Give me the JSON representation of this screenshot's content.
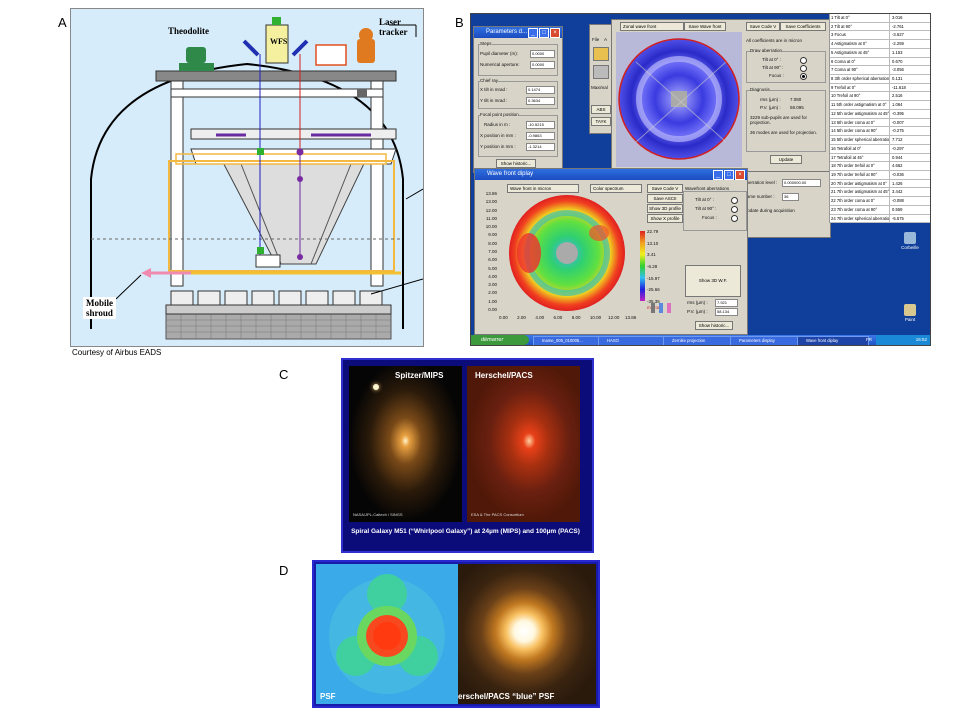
{
  "panel_labels": {
    "a": "A",
    "b": "B",
    "c": "C",
    "d": "D"
  },
  "panel_a": {
    "theodolite": "Theodolite",
    "laser_tracker": "Laser tracker",
    "wfs": "WFS",
    "mobile_shroud": "Mobile\nshroud",
    "courtesy": "Courtesy of Airbus EADS"
  },
  "panel_b": {
    "param_window_title": "Parameters d...",
    "param": {
      "steps_label": "Steps",
      "pupil_diameter_label": "Pupil diameter (m):",
      "pupil_diameter_value": "0.0000",
      "numerical_aperture_label": "Numerical aperture:",
      "numerical_aperture_value": "0.0000",
      "chief_ray_label": "Chief ray",
      "x_tilt_label": "X tilt in mrad :",
      "x_tilt_value": "0.1474",
      "y_tilt_label": "Y tilt in mrad :",
      "y_tilt_value": "0.3634",
      "focal_label": "Focal point position",
      "radius_label": "Radius in m :",
      "radius_value": "-10.5215",
      "xpos_label": "X position in mm :",
      "xpos_value": "-0.9863",
      "ypos_label": "Y position in mm :",
      "ypos_value": "-1.3214",
      "history_button": "Show historic..."
    },
    "side_menu": {
      "file": "File",
      "area": "A",
      "max": "Maximal",
      "abs": "ABS",
      "tilt": "TAYK"
    },
    "zonal": {
      "dropdown": "Zonal wave front",
      "save_wf": "Save Wave front",
      "save_code_v": "Save Code V",
      "save_coeffs": "Save Coefficients",
      "all_coeffs": "All coefficients are in micron",
      "draw_aberration": "Draw aberration",
      "tilt0": "Tilt at 0° :",
      "tilt90": "Tilt at 90° :",
      "focus": "Focus :",
      "diagnosis": "Diagnosis",
      "rms_label": "rms (µm) :",
      "rms_value": "7.080",
      "pv_label": "P.V. (µm) :",
      "pv_value": "58.095",
      "subpupils": "3229 sub-pupils are used for projection.",
      "modes": "36 modes are used for projection.",
      "update": "Update"
    },
    "wavefront_window": {
      "title": "Wave front diplay",
      "dropdown": "Wave front in micron",
      "color_dropdown": "Color spectrum",
      "save_code_v": "Save Code V",
      "save_ascii": "Save ASCII",
      "show_3d_profile": "Show 3D profile",
      "show_x_profile": "Show X profile",
      "wf_aberrations": "Wavefront aberrations",
      "tilt0": "Tilt at 0° :",
      "tilt90": "Tilt at 90° :",
      "focus": "Focus :",
      "show_3d_wf": "Show 3D W.F.",
      "rms_label": "rms (µm) :",
      "rms_value": "7.921",
      "pv_label": "P.V. (µm) :",
      "pv_value": "58.134",
      "history_button": "Show historic...",
      "colorbar_values": [
        "22.79",
        "13.10",
        "3.41",
        "-6.28",
        "-15.97",
        "-25.66",
        "-35.35"
      ],
      "colorbar_unit": "micron",
      "y_ticks": [
        "13.86",
        "13.00",
        "12.00",
        "11.00",
        "10.00",
        "9.00",
        "8.00",
        "7.00",
        "6.00",
        "5.00",
        "4.00",
        "3.00",
        "2.00",
        "1.00",
        "0.00"
      ],
      "x_ticks": [
        "0.00",
        "2.00",
        "4.00",
        "6.00",
        "8.00",
        "10.00",
        "12.00",
        "13.86"
      ]
    },
    "misc": {
      "cut_level_label": "aberration level :",
      "cut_level_value": "0.000000.00",
      "frame_label": "frame number :",
      "frame_value": "36",
      "update_acq": "Update during acquisition"
    },
    "zernike": [
      {
        "name": "1  Tilt at 0°",
        "value": "3.016"
      },
      {
        "name": "2  Tilt at 90°",
        "value": "-2.761"
      },
      {
        "name": "3  Focus",
        "value": "-3.627"
      },
      {
        "name": "4  Astigmatism at 0°",
        "value": "-2.259"
      },
      {
        "name": "5  Astigmatism at 45°",
        "value": "1.153"
      },
      {
        "name": "6  Coma at 0°",
        "value": "0.670"
      },
      {
        "name": "7  Coma at 90°",
        "value": "-3.056"
      },
      {
        "name": "8  3th order spherical aberration",
        "value": "0.131"
      },
      {
        "name": "9  Trefoil at 0°",
        "value": "-11.618"
      },
      {
        "name": "10  Trefoil at 90°",
        "value": "2.516"
      },
      {
        "name": "11  5th order astigmatism at 0°",
        "value": "1.064"
      },
      {
        "name": "12  5th order astigmatism at 45°",
        "value": "-0.395"
      },
      {
        "name": "13  5th order coma at 0°",
        "value": "-0.007"
      },
      {
        "name": "14  5th order coma at 90°",
        "value": "-0.275"
      },
      {
        "name": "15  5th order spherical aberration",
        "value": "7.712"
      },
      {
        "name": "16  Tetrafoil at 0°",
        "value": "-0.297"
      },
      {
        "name": "17  Tetrafoil at 45°",
        "value": "0.944"
      },
      {
        "name": "18  7th order trefoil at 0°",
        "value": "4.662"
      },
      {
        "name": "19  7th order trefoil at 90°",
        "value": "-0.036"
      },
      {
        "name": "20  7th order astigmatism at 0°",
        "value": "1.426"
      },
      {
        "name": "21  7th order astigmatism at 45°",
        "value": "3.442"
      },
      {
        "name": "22  7th order coma at 0°",
        "value": "-0.088"
      },
      {
        "name": "23  7th order coma at 90°",
        "value": "0.559"
      },
      {
        "name": "24  7th order spherical aberration",
        "value": "-5.575"
      }
    ],
    "desktop_icons": {
      "trash": "Corbeille",
      "paint": "Paint"
    },
    "taskbar": {
      "start": "démarrer",
      "tasks": [
        "Iname_005_010005...",
        "HASO",
        "Zernike projection",
        "Parameters display",
        "Wave front diplay"
      ],
      "lang": "FR",
      "clock": "16:52"
    }
  },
  "panel_c": {
    "left_title": "Spitzer/MIPS",
    "right_title": "Herschel/PACS",
    "left_credit": "NASA/JPL-Caltech / SINGS",
    "right_credit": "ESA & The PACS Consortium",
    "caption": "Spiral Galaxy M51 (“Whirlpool Galaxy”) at 24µm (MIPS) and 100µm (PACS)"
  },
  "panel_d": {
    "left_label": "PSF",
    "right_label": "erschel/PACS “blue” PSF"
  }
}
